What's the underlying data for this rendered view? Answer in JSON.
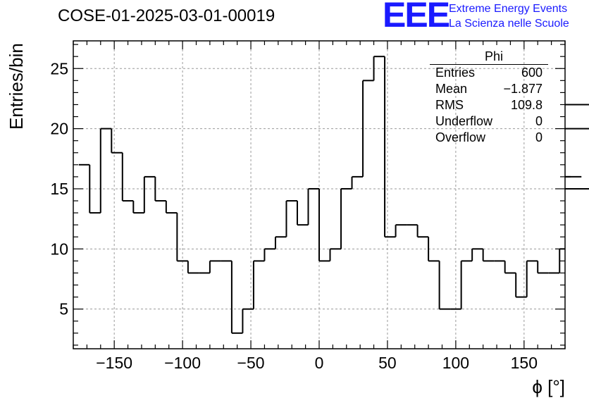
{
  "chart_data": {
    "type": "histogram",
    "title": "COSE-01-2025-03-01-00019",
    "xlabel": "ϕ [°]",
    "ylabel": "Entries/bin",
    "xlim": [
      -180,
      180
    ],
    "ylim": [
      1.7,
      27.3
    ],
    "grid": true,
    "bin_width": 8,
    "bin_edges_start": -176,
    "values": [
      17,
      13,
      20,
      18,
      14,
      13,
      16,
      14,
      13,
      9,
      8,
      8,
      9,
      9,
      3,
      5,
      9,
      10,
      11,
      14,
      12,
      15,
      9,
      10,
      15,
      16,
      24,
      26,
      11,
      12,
      12,
      11,
      9,
      5,
      5,
      9,
      10,
      9,
      9,
      8,
      6,
      9,
      8,
      8,
      10,
      16,
      16,
      15,
      22,
      20
    ],
    "x_ticks": [
      -150,
      -100,
      -50,
      0,
      50,
      100,
      150
    ],
    "y_ticks": [
      5,
      10,
      15,
      20,
      25
    ],
    "stats_box": {
      "name": "Phi",
      "rows": [
        {
          "label": "Entries",
          "value": "600"
        },
        {
          "label": "Mean",
          "value": "−1.877"
        },
        {
          "label": "RMS",
          "value": "109.8"
        },
        {
          "label": "Underflow",
          "value": "0"
        },
        {
          "label": "Overflow",
          "value": "0"
        }
      ],
      "position": "top-right"
    }
  },
  "logo": {
    "mark": "EEE",
    "line1": "Extreme Energy Events",
    "line2": "La Scienza nelle Scuole",
    "color": "#1a1aff"
  }
}
